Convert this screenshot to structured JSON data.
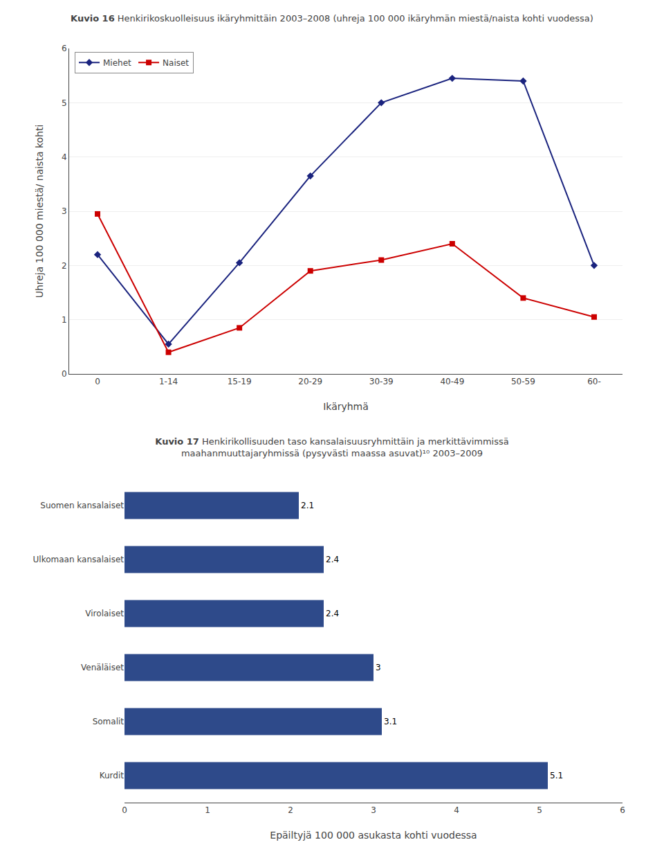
{
  "chart_data": [
    {
      "type": "line",
      "title": "Kuvio 16 Henkirikoskuolleisuus ikäryhmittäin 2003–2008 (uhreja 100 000 ikäryhmän miestä/naista kohti vuodessa)",
      "categories": [
        "0",
        "1-14",
        "15-19",
        "20-29",
        "30-39",
        "40-49",
        "50-59",
        "60-"
      ],
      "series": [
        {
          "name": "Miehet",
          "color": "#1a237e",
          "marker": "diamond",
          "values": [
            2.2,
            0.55,
            2.05,
            3.65,
            5.0,
            5.45,
            5.4,
            2.0
          ]
        },
        {
          "name": "Naiset",
          "color": "#cc0000",
          "marker": "square",
          "values": [
            2.95,
            0.4,
            0.85,
            1.9,
            2.1,
            2.4,
            1.4,
            1.05
          ]
        }
      ],
      "xlabel": "Ikäryhmä",
      "ylabel": "Uhreja 100 000 miestä/ naista kohti",
      "ylim": [
        0,
        6
      ],
      "yticks": [
        0,
        1,
        2,
        3,
        4,
        5,
        6
      ],
      "grid": true,
      "legend": "upper left"
    },
    {
      "type": "bar",
      "title": "Kuvio 17 Henkirikollisuuden taso kansalaisuusryhmittäin ja merkittävimmissä\nmaahanmuuttajaryhmissä (pysyvästi maassa asuvat)¹⁰ 2003–2009",
      "orientation": "horizontal",
      "categories": [
        "Suomen kansalaiset",
        "Ulkomaan kansalaiset",
        "Virolaiset",
        "Venäläiset",
        "Somalit",
        "Kurdit"
      ],
      "values": [
        2.1,
        2.4,
        2.4,
        3.0,
        3.1,
        5.1
      ],
      "color": "#2e4a8a",
      "xlabel": "Epäiltyjä 100 000 asukasta kohti vuodessa",
      "xlim": [
        0,
        6
      ],
      "xticks": [
        0,
        1,
        2,
        3,
        4,
        5,
        6
      ],
      "grid": false,
      "data_labels": true
    }
  ]
}
